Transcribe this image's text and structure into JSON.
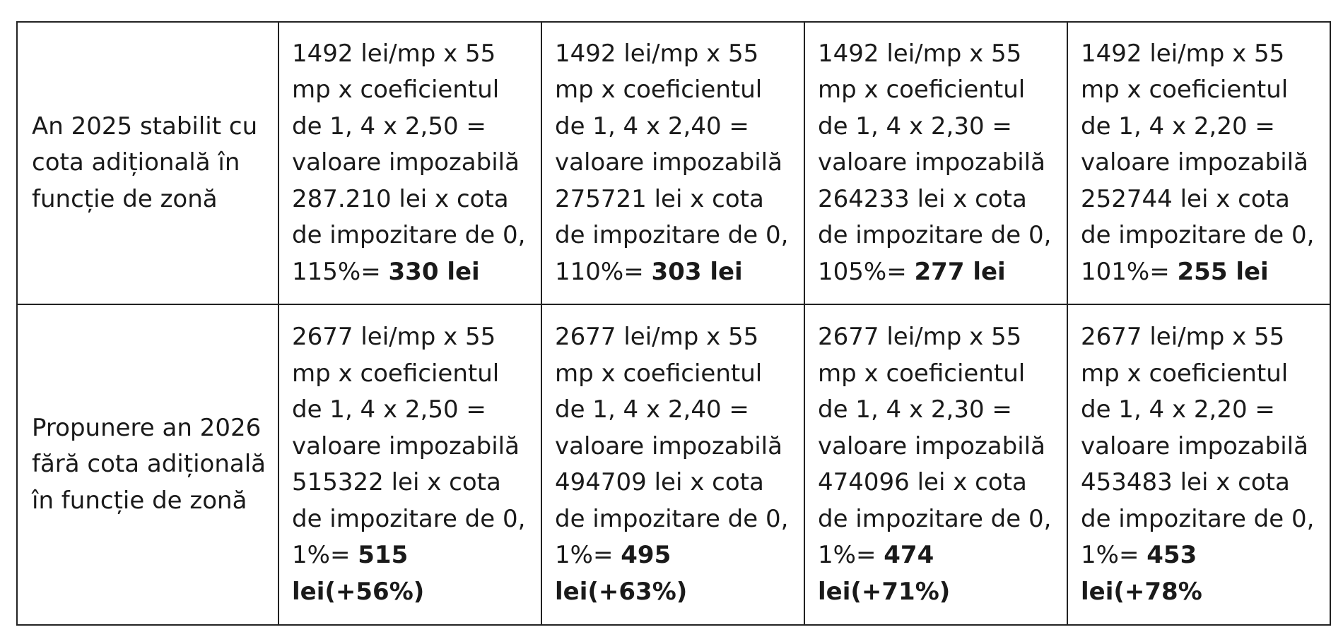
{
  "table": {
    "rows": [
      {
        "label": "An 2025 stabilit cu cota adițională în funcție de zonă",
        "cells": [
          {
            "calc": "1492 lei/mp x 55 mp x coeficientul de 1, 4 x 2,50 = valoare impozabilă 287.210 lei  x cota de impozitare de 0, 115%=",
            "result": "330 lei"
          },
          {
            "calc": "1492 lei/mp x 55 mp x coeficientul de 1, 4 x 2,40 = valoare impozabilă 275721 lei  x cota de impozitare de 0, 110%=",
            "result": "303 lei"
          },
          {
            "calc": "1492 lei/mp x 55 mp x coeficientul de 1, 4 x 2,30 = valoare impozabilă 264233 lei  x cota de impozitare de 0, 105%=",
            "result": "277 lei"
          },
          {
            "calc": "1492 lei/mp x 55 mp x coeficientul de 1, 4 x 2,20 = valoare impozabilă 252744 lei  x cota de impozitare de 0, 101%=",
            "result": "255 lei"
          }
        ]
      },
      {
        "label": "Propunere an 2026 fără cota adițională în funcție de zonă",
        "cells": [
          {
            "calc": "2677 lei/mp x  55 mp x coeficientul de 1, 4 x 2,50 = valoare impozabilă 515322 lei  x cota de impozitare de 0, 1%=",
            "result": "515 lei(+56%)"
          },
          {
            "calc": "2677 lei/mp x 55 mp x coeficientul de 1, 4 x 2,40 = valoare impozabilă 494709 lei  x cota de impozitare de 0, 1%=",
            "result": "495 lei(+63%)"
          },
          {
            "calc": "2677 lei/mp x 55 mp x coeficientul de 1, 4 x 2,30 = valoare impozabilă 474096 lei  x cota de impozitare de 0, 1%=",
            "result": "474 lei(+71%)"
          },
          {
            "calc": "2677 lei/mp x  55 mp x coeficientul de 1, 4 x 2,20 = valoare impozabilă 453483 lei  x cota de impozitare de 0, 1%=",
            "result": "453 lei(+78%"
          }
        ]
      }
    ]
  }
}
